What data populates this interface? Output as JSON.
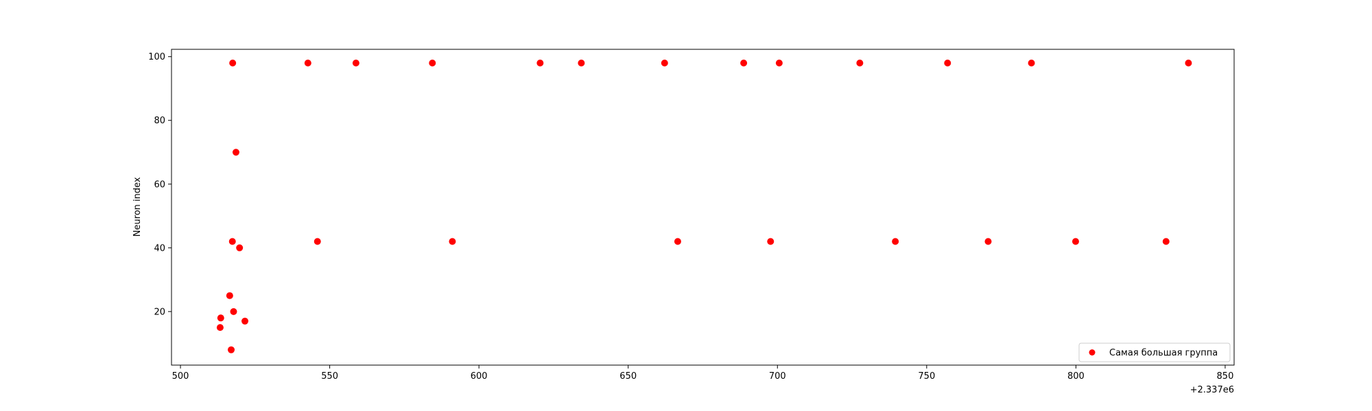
{
  "chart_data": {
    "type": "scatter",
    "title": "",
    "xlabel": "",
    "ylabel": "Neuron index",
    "x_offset_label": "+2.337e6",
    "xlim": [
      497,
      853
    ],
    "ylim": [
      3.2,
      102.3
    ],
    "xticks": [
      500,
      550,
      600,
      650,
      700,
      750,
      800,
      850
    ],
    "yticks": [
      20,
      40,
      60,
      80,
      100
    ],
    "grid": false,
    "legend_position": "lower-right",
    "series": [
      {
        "name": "Самая большая группа",
        "color": "#ff0000",
        "points": [
          {
            "x": 517.5,
            "y": 98
          },
          {
            "x": 542.7,
            "y": 98
          },
          {
            "x": 558.8,
            "y": 98
          },
          {
            "x": 584.4,
            "y": 98
          },
          {
            "x": 620.5,
            "y": 98
          },
          {
            "x": 634.3,
            "y": 98
          },
          {
            "x": 662.2,
            "y": 98
          },
          {
            "x": 688.7,
            "y": 98
          },
          {
            "x": 700.6,
            "y": 98
          },
          {
            "x": 727.6,
            "y": 98
          },
          {
            "x": 757.0,
            "y": 98
          },
          {
            "x": 785.1,
            "y": 98
          },
          {
            "x": 837.7,
            "y": 98
          },
          {
            "x": 518.6,
            "y": 70
          },
          {
            "x": 517.4,
            "y": 42
          },
          {
            "x": 545.9,
            "y": 42
          },
          {
            "x": 591.1,
            "y": 42
          },
          {
            "x": 666.6,
            "y": 42
          },
          {
            "x": 697.7,
            "y": 42
          },
          {
            "x": 739.5,
            "y": 42
          },
          {
            "x": 770.6,
            "y": 42
          },
          {
            "x": 799.9,
            "y": 42
          },
          {
            "x": 830.2,
            "y": 42
          },
          {
            "x": 519.8,
            "y": 40
          },
          {
            "x": 516.5,
            "y": 25
          },
          {
            "x": 517.8,
            "y": 20
          },
          {
            "x": 513.5,
            "y": 18
          },
          {
            "x": 521.6,
            "y": 17
          },
          {
            "x": 513.3,
            "y": 15
          },
          {
            "x": 517.0,
            "y": 8
          }
        ]
      }
    ]
  }
}
